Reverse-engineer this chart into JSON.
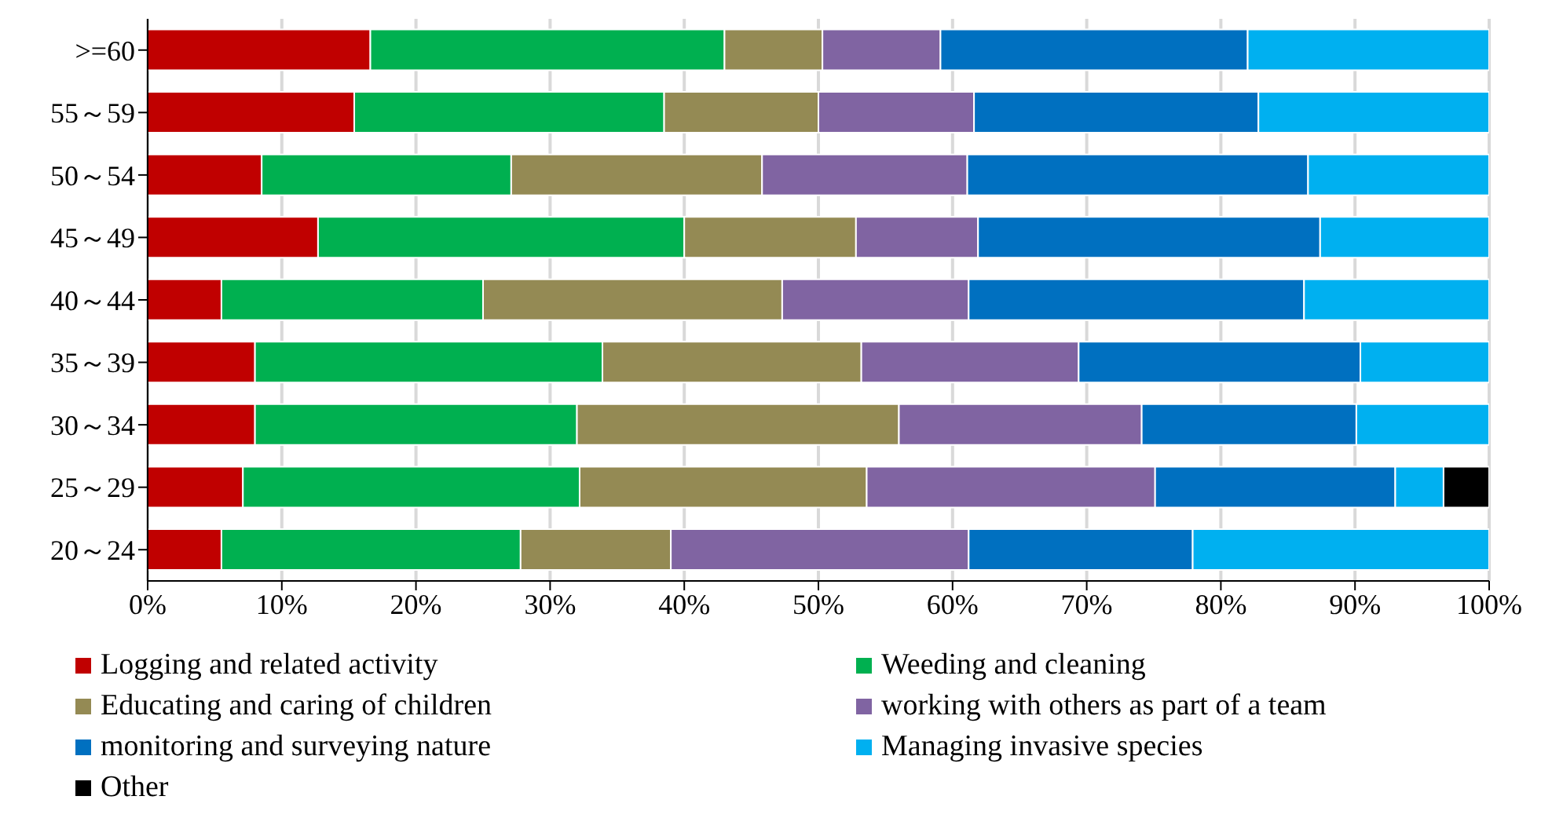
{
  "chart_data": {
    "type": "bar",
    "orientation": "horizontal",
    "stacked": true,
    "categories": [
      ">=60",
      "55～59",
      "50～54",
      "45～49",
      "40～44",
      "35～39",
      "30～34",
      "25～29",
      "20～24"
    ],
    "series": [
      {
        "name": "Logging and related activity",
        "color": "#c00000",
        "values": [
          16.6,
          15.4,
          8.5,
          12.7,
          5.5,
          8.0,
          8.0,
          7.1,
          5.5
        ]
      },
      {
        "name": "Weeding and cleaning",
        "color": "#00b050",
        "values": [
          26.4,
          23.1,
          18.6,
          27.3,
          19.5,
          25.9,
          24.0,
          25.1,
          22.3
        ]
      },
      {
        "name": "Educating and caring of children",
        "color": "#948a54",
        "values": [
          7.3,
          11.5,
          18.7,
          12.8,
          22.3,
          19.3,
          24.0,
          21.4,
          11.2
        ]
      },
      {
        "name": "working with others as part of a team",
        "color": "#8064a2",
        "values": [
          8.8,
          11.6,
          15.3,
          9.1,
          13.9,
          16.2,
          18.1,
          21.5,
          22.2
        ]
      },
      {
        "name": "monitoring and surveying nature",
        "color": "#0070c0",
        "values": [
          22.9,
          21.2,
          25.4,
          25.5,
          25.0,
          21.0,
          16.0,
          17.9,
          16.7
        ]
      },
      {
        "name": "Managing invasive species",
        "color": "#00b0f0",
        "values": [
          18.0,
          17.2,
          13.5,
          12.6,
          13.8,
          9.6,
          9.9,
          3.6,
          22.1
        ]
      },
      {
        "name": "Other",
        "color": "#000000",
        "values": [
          null,
          null,
          null,
          null,
          null,
          null,
          null,
          3.4,
          null
        ]
      }
    ],
    "xlim": [
      0,
      100
    ],
    "xticks": [
      {
        "value": 0,
        "label": "0%"
      },
      {
        "value": 10,
        "label": "10%"
      },
      {
        "value": 20,
        "label": "20%"
      },
      {
        "value": 30,
        "label": "30%"
      },
      {
        "value": 40,
        "label": "40%"
      },
      {
        "value": 50,
        "label": "50%"
      },
      {
        "value": 60,
        "label": "60%"
      },
      {
        "value": 70,
        "label": "70%"
      },
      {
        "value": 80,
        "label": "80%"
      },
      {
        "value": 90,
        "label": "90%"
      },
      {
        "value": 100,
        "label": "100%"
      }
    ],
    "grid": "x",
    "legend": "bottom"
  }
}
